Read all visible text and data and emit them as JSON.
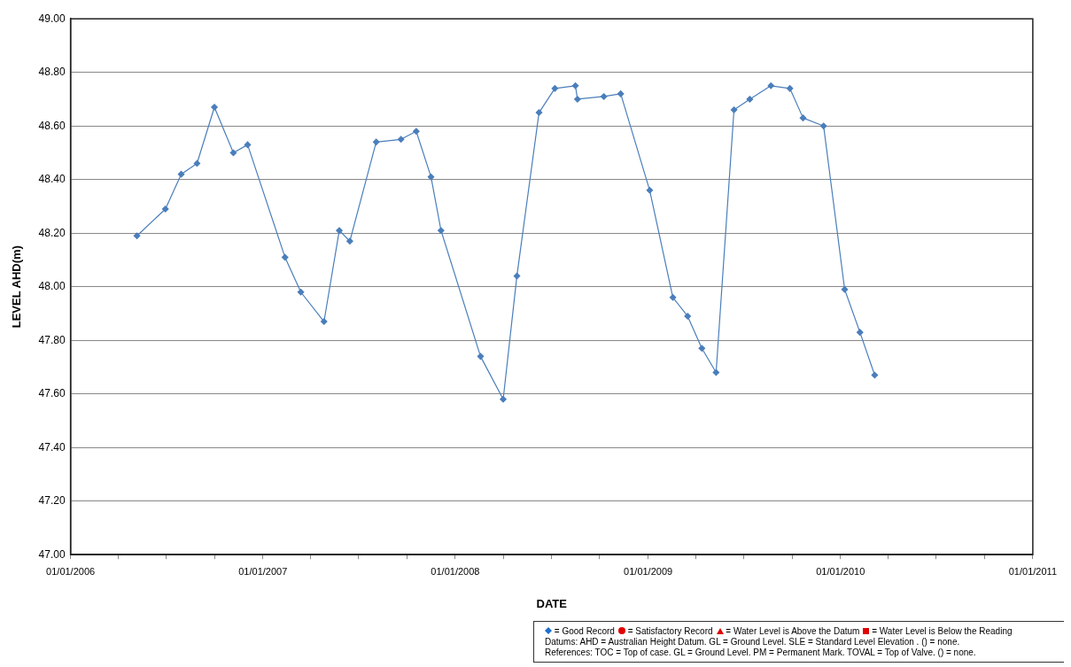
{
  "chart_data": {
    "type": "line",
    "xlabel": "DATE",
    "ylabel": "LEVEL AHD(m)",
    "series": [
      {
        "color": "#4a7ebb",
        "x": [
          "2006-05-07",
          "2006-06-30",
          "2006-07-30",
          "2006-08-29",
          "2006-10-01",
          "2006-11-06",
          "2006-12-03",
          "2007-02-12",
          "2007-03-14",
          "2007-04-27",
          "2007-05-26",
          "2007-06-15",
          "2007-08-04",
          "2007-09-20",
          "2007-10-19",
          "2007-11-16",
          "2007-12-05",
          "2008-02-18",
          "2008-04-01",
          "2008-04-27",
          "2008-06-08",
          "2008-07-08",
          "2008-08-16",
          "2008-08-20",
          "2008-10-09",
          "2008-11-10",
          "2009-01-04",
          "2009-02-17",
          "2009-03-17",
          "2009-04-13",
          "2009-05-10",
          "2009-06-13",
          "2009-07-13",
          "2009-08-22",
          "2009-09-27",
          "2009-10-22",
          "2009-11-30",
          "2010-01-09",
          "2010-02-07",
          "2010-03-07"
        ],
        "values": [
          48.19,
          48.29,
          48.42,
          48.46,
          48.67,
          48.5,
          48.53,
          48.11,
          47.98,
          47.87,
          48.21,
          48.17,
          48.54,
          48.55,
          48.58,
          48.41,
          48.21,
          47.74,
          47.58,
          48.04,
          48.65,
          48.74,
          48.75,
          48.7,
          48.71,
          48.72,
          48.36,
          47.96,
          47.89,
          47.77,
          47.68,
          48.66,
          48.7,
          48.75,
          48.74,
          48.63,
          48.6,
          47.99,
          47.83,
          47.67
        ]
      }
    ],
    "xlim": [
      "2006-01-01",
      "2011-01-01"
    ],
    "xticks": [
      {
        "value": "2006-01-01",
        "label": "01/01/2006"
      },
      {
        "value": "2006-04-01",
        "label": null
      },
      {
        "value": "2006-07-01",
        "label": null
      },
      {
        "value": "2006-10-01",
        "label": null
      },
      {
        "value": "2007-01-01",
        "label": "01/01/2007"
      },
      {
        "value": "2007-04-01",
        "label": null
      },
      {
        "value": "2007-07-01",
        "label": null
      },
      {
        "value": "2007-10-01",
        "label": null
      },
      {
        "value": "2008-01-01",
        "label": "01/01/2008"
      },
      {
        "value": "2008-04-01",
        "label": null
      },
      {
        "value": "2008-07-01",
        "label": null
      },
      {
        "value": "2008-10-01",
        "label": null
      },
      {
        "value": "2009-01-01",
        "label": "01/01/2009"
      },
      {
        "value": "2009-04-01",
        "label": null
      },
      {
        "value": "2009-07-01",
        "label": null
      },
      {
        "value": "2009-10-01",
        "label": null
      },
      {
        "value": "2010-01-01",
        "label": "01/01/2010"
      },
      {
        "value": "2010-04-01",
        "label": null
      },
      {
        "value": "2010-07-01",
        "label": null
      },
      {
        "value": "2010-10-01",
        "label": null
      },
      {
        "value": "2011-01-01",
        "label": "01/01/2011"
      }
    ],
    "ylim": [
      47.0,
      49.0
    ],
    "yticks": [
      {
        "value": 47.0,
        "label": "47.00"
      },
      {
        "value": 47.2,
        "label": "47.20"
      },
      {
        "value": 47.4,
        "label": "47.40"
      },
      {
        "value": 47.6,
        "label": "47.60"
      },
      {
        "value": 47.8,
        "label": "47.80"
      },
      {
        "value": 48.0,
        "label": "48.00"
      },
      {
        "value": 48.2,
        "label": "48.20"
      },
      {
        "value": 48.4,
        "label": "48.40"
      },
      {
        "value": 48.6,
        "label": "48.60"
      },
      {
        "value": 48.8,
        "label": "48.80"
      },
      {
        "value": 49.0,
        "label": "49.00"
      }
    ],
    "grid": "y",
    "marker": "diamond",
    "line_style": "solid",
    "annotations": [
      "= Good Record",
      "= Satisfactory Record",
      "= Water Level  is Above the Datum",
      "= Water Level is Below the Reading",
      "Datums: AHD = Australian Height Datum. GL = Ground Level. SLE = Standard Level Elevation . () = none.",
      "References: TOC = Top of case. GL = Ground Level. PM = Permanent Mark. TOVAL  = Top of Valve. () = none."
    ]
  }
}
